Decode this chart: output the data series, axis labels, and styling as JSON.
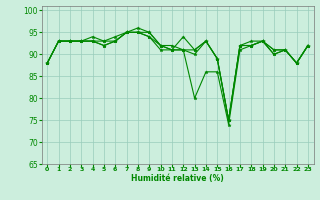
{
  "xlabel": "Humidité relative (%)",
  "background_color": "#cceedd",
  "grid_color": "#99ccbb",
  "line_color": "#008800",
  "ylim": [
    65,
    101
  ],
  "yticks": [
    65,
    70,
    75,
    80,
    85,
    90,
    95,
    100
  ],
  "xlim": [
    -0.5,
    23.5
  ],
  "xticks": [
    0,
    1,
    2,
    3,
    4,
    5,
    6,
    7,
    8,
    9,
    10,
    11,
    12,
    13,
    14,
    15,
    16,
    17,
    18,
    19,
    20,
    21,
    22,
    23
  ],
  "series": [
    [
      88,
      93,
      93,
      93,
      93,
      93,
      93,
      95,
      95,
      95,
      92,
      91,
      91,
      80,
      86,
      86,
      74,
      91,
      92,
      93,
      90,
      91,
      88,
      92
    ],
    [
      88,
      93,
      93,
      93,
      94,
      93,
      94,
      95,
      96,
      95,
      92,
      91,
      91,
      91,
      93,
      89,
      75,
      92,
      92,
      93,
      91,
      91,
      88,
      92
    ],
    [
      88,
      93,
      93,
      93,
      93,
      92,
      93,
      95,
      95,
      94,
      92,
      92,
      91,
      90,
      93,
      89,
      75,
      92,
      93,
      93,
      90,
      91,
      88,
      92
    ],
    [
      88,
      93,
      93,
      93,
      93,
      92,
      93,
      95,
      95,
      94,
      91,
      91,
      94,
      91,
      93,
      89,
      75,
      92,
      92,
      93,
      91,
      91,
      88,
      92
    ]
  ]
}
